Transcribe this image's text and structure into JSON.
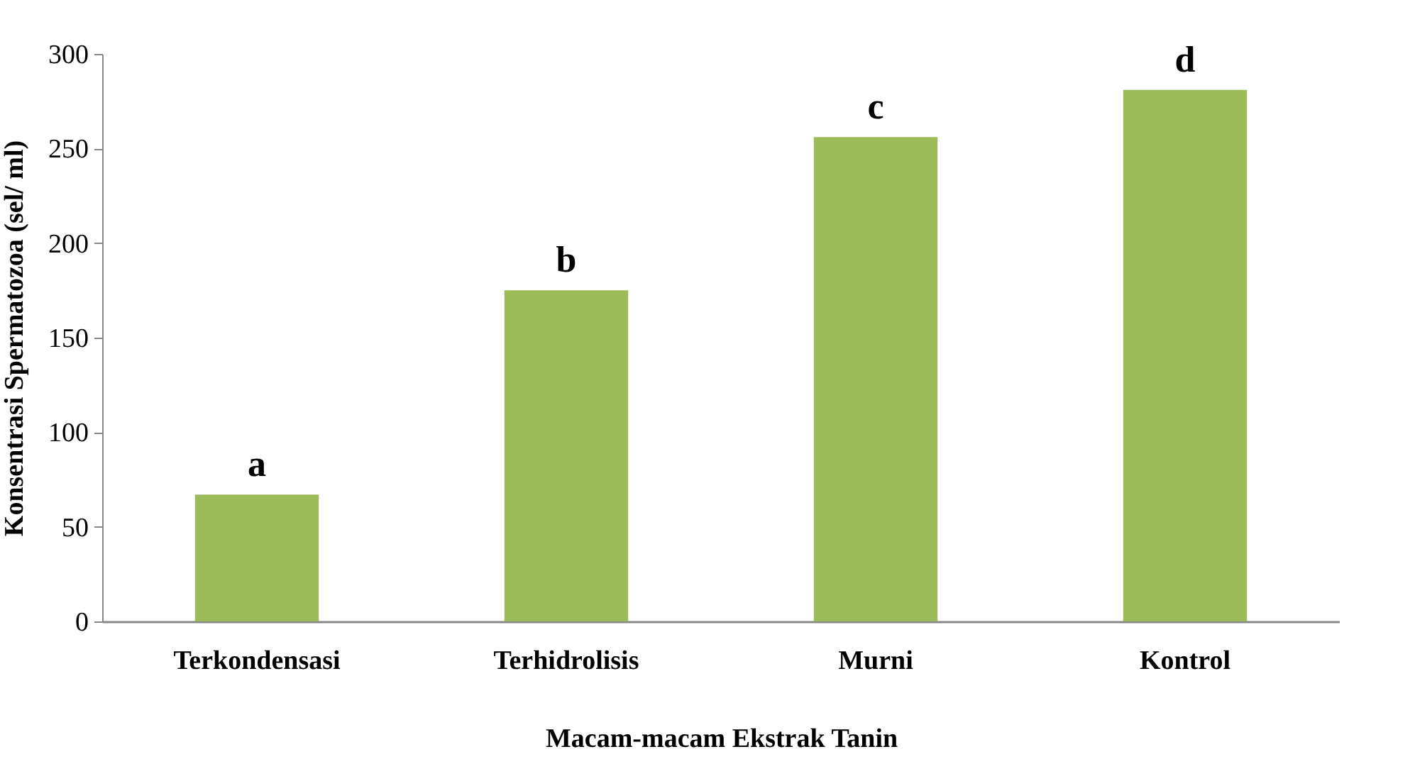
{
  "chart_data": {
    "type": "bar",
    "xlabel": "Macam-macam Ekstrak Tanin",
    "ylabel": "Konsentrasi Spermatozoa (sel/ ml)",
    "categories": [
      "Terkondensasi",
      "Terhidrolisis",
      "Murni",
      "Kontrol"
    ],
    "values": [
      67,
      175,
      256,
      281
    ],
    "color": "#9bbb59",
    "ylim": [
      0,
      300
    ],
    "yticks": [
      0,
      50,
      100,
      150,
      200,
      250,
      300
    ],
    "grid": false,
    "annotations": [
      {
        "text": "a",
        "x": "Terkondensasi",
        "y": 67
      },
      {
        "text": "b",
        "x": "Terhidrolisis",
        "y": 175
      },
      {
        "text": "c",
        "x": "Murni",
        "y": 256
      },
      {
        "text": "d",
        "x": "Kontrol",
        "y": 281
      }
    ]
  }
}
